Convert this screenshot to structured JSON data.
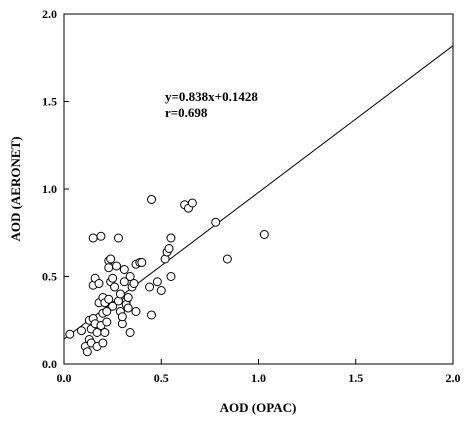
{
  "chart_data": {
    "type": "scatter",
    "xlabel": "AOD (OPAC)",
    "ylabel": "AOD (AERONET)",
    "xlim": [
      0,
      2.0
    ],
    "ylim": [
      0,
      2.0
    ],
    "xticks": [
      "0.0",
      "0.5",
      "1.0",
      "1.5",
      "2.0"
    ],
    "yticks": [
      "0.0",
      "0.5",
      "1.0",
      "1.5",
      "2.0"
    ],
    "grid": false,
    "legend": "none",
    "fit_line": {
      "slope": 0.838,
      "intercept": 0.1428
    },
    "annotations": {
      "equation": "y=0.838x+0.1428",
      "r": "r=0.698"
    },
    "series": [
      {
        "marker": "open-circle",
        "points": [
          [
            0.03,
            0.17
          ],
          [
            0.09,
            0.19
          ],
          [
            0.11,
            0.1
          ],
          [
            0.12,
            0.07
          ],
          [
            0.13,
            0.14
          ],
          [
            0.13,
            0.25
          ],
          [
            0.14,
            0.12
          ],
          [
            0.14,
            0.2
          ],
          [
            0.15,
            0.26
          ],
          [
            0.15,
            0.45
          ],
          [
            0.15,
            0.72
          ],
          [
            0.16,
            0.23
          ],
          [
            0.16,
            0.49
          ],
          [
            0.17,
            0.18
          ],
          [
            0.17,
            0.1
          ],
          [
            0.18,
            0.35
          ],
          [
            0.18,
            0.46
          ],
          [
            0.19,
            0.73
          ],
          [
            0.19,
            0.22
          ],
          [
            0.2,
            0.12
          ],
          [
            0.2,
            0.38
          ],
          [
            0.2,
            0.29
          ],
          [
            0.21,
            0.35
          ],
          [
            0.21,
            0.18
          ],
          [
            0.22,
            0.3
          ],
          [
            0.22,
            0.24
          ],
          [
            0.23,
            0.59
          ],
          [
            0.23,
            0.55
          ],
          [
            0.23,
            0.37
          ],
          [
            0.24,
            0.6
          ],
          [
            0.24,
            0.47
          ],
          [
            0.25,
            0.49
          ],
          [
            0.25,
            0.33
          ],
          [
            0.26,
            0.44
          ],
          [
            0.27,
            0.56
          ],
          [
            0.28,
            0.72
          ],
          [
            0.28,
            0.36
          ],
          [
            0.29,
            0.4
          ],
          [
            0.29,
            0.3
          ],
          [
            0.3,
            0.23
          ],
          [
            0.3,
            0.27
          ],
          [
            0.31,
            0.47
          ],
          [
            0.31,
            0.54
          ],
          [
            0.32,
            0.36
          ],
          [
            0.32,
            0.34
          ],
          [
            0.33,
            0.38
          ],
          [
            0.33,
            0.32
          ],
          [
            0.34,
            0.5
          ],
          [
            0.34,
            0.18
          ],
          [
            0.35,
            0.44
          ],
          [
            0.36,
            0.46
          ],
          [
            0.37,
            0.57
          ],
          [
            0.37,
            0.3
          ],
          [
            0.39,
            0.58
          ],
          [
            0.4,
            0.58
          ],
          [
            0.44,
            0.44
          ],
          [
            0.45,
            0.94
          ],
          [
            0.45,
            0.28
          ],
          [
            0.48,
            0.47
          ],
          [
            0.5,
            0.42
          ],
          [
            0.52,
            0.6
          ],
          [
            0.53,
            0.64
          ],
          [
            0.54,
            0.66
          ],
          [
            0.55,
            0.72
          ],
          [
            0.55,
            0.5
          ],
          [
            0.62,
            0.91
          ],
          [
            0.64,
            0.89
          ],
          [
            0.66,
            0.92
          ],
          [
            0.78,
            0.81
          ],
          [
            0.84,
            0.6
          ],
          [
            1.03,
            0.74
          ]
        ]
      }
    ]
  }
}
